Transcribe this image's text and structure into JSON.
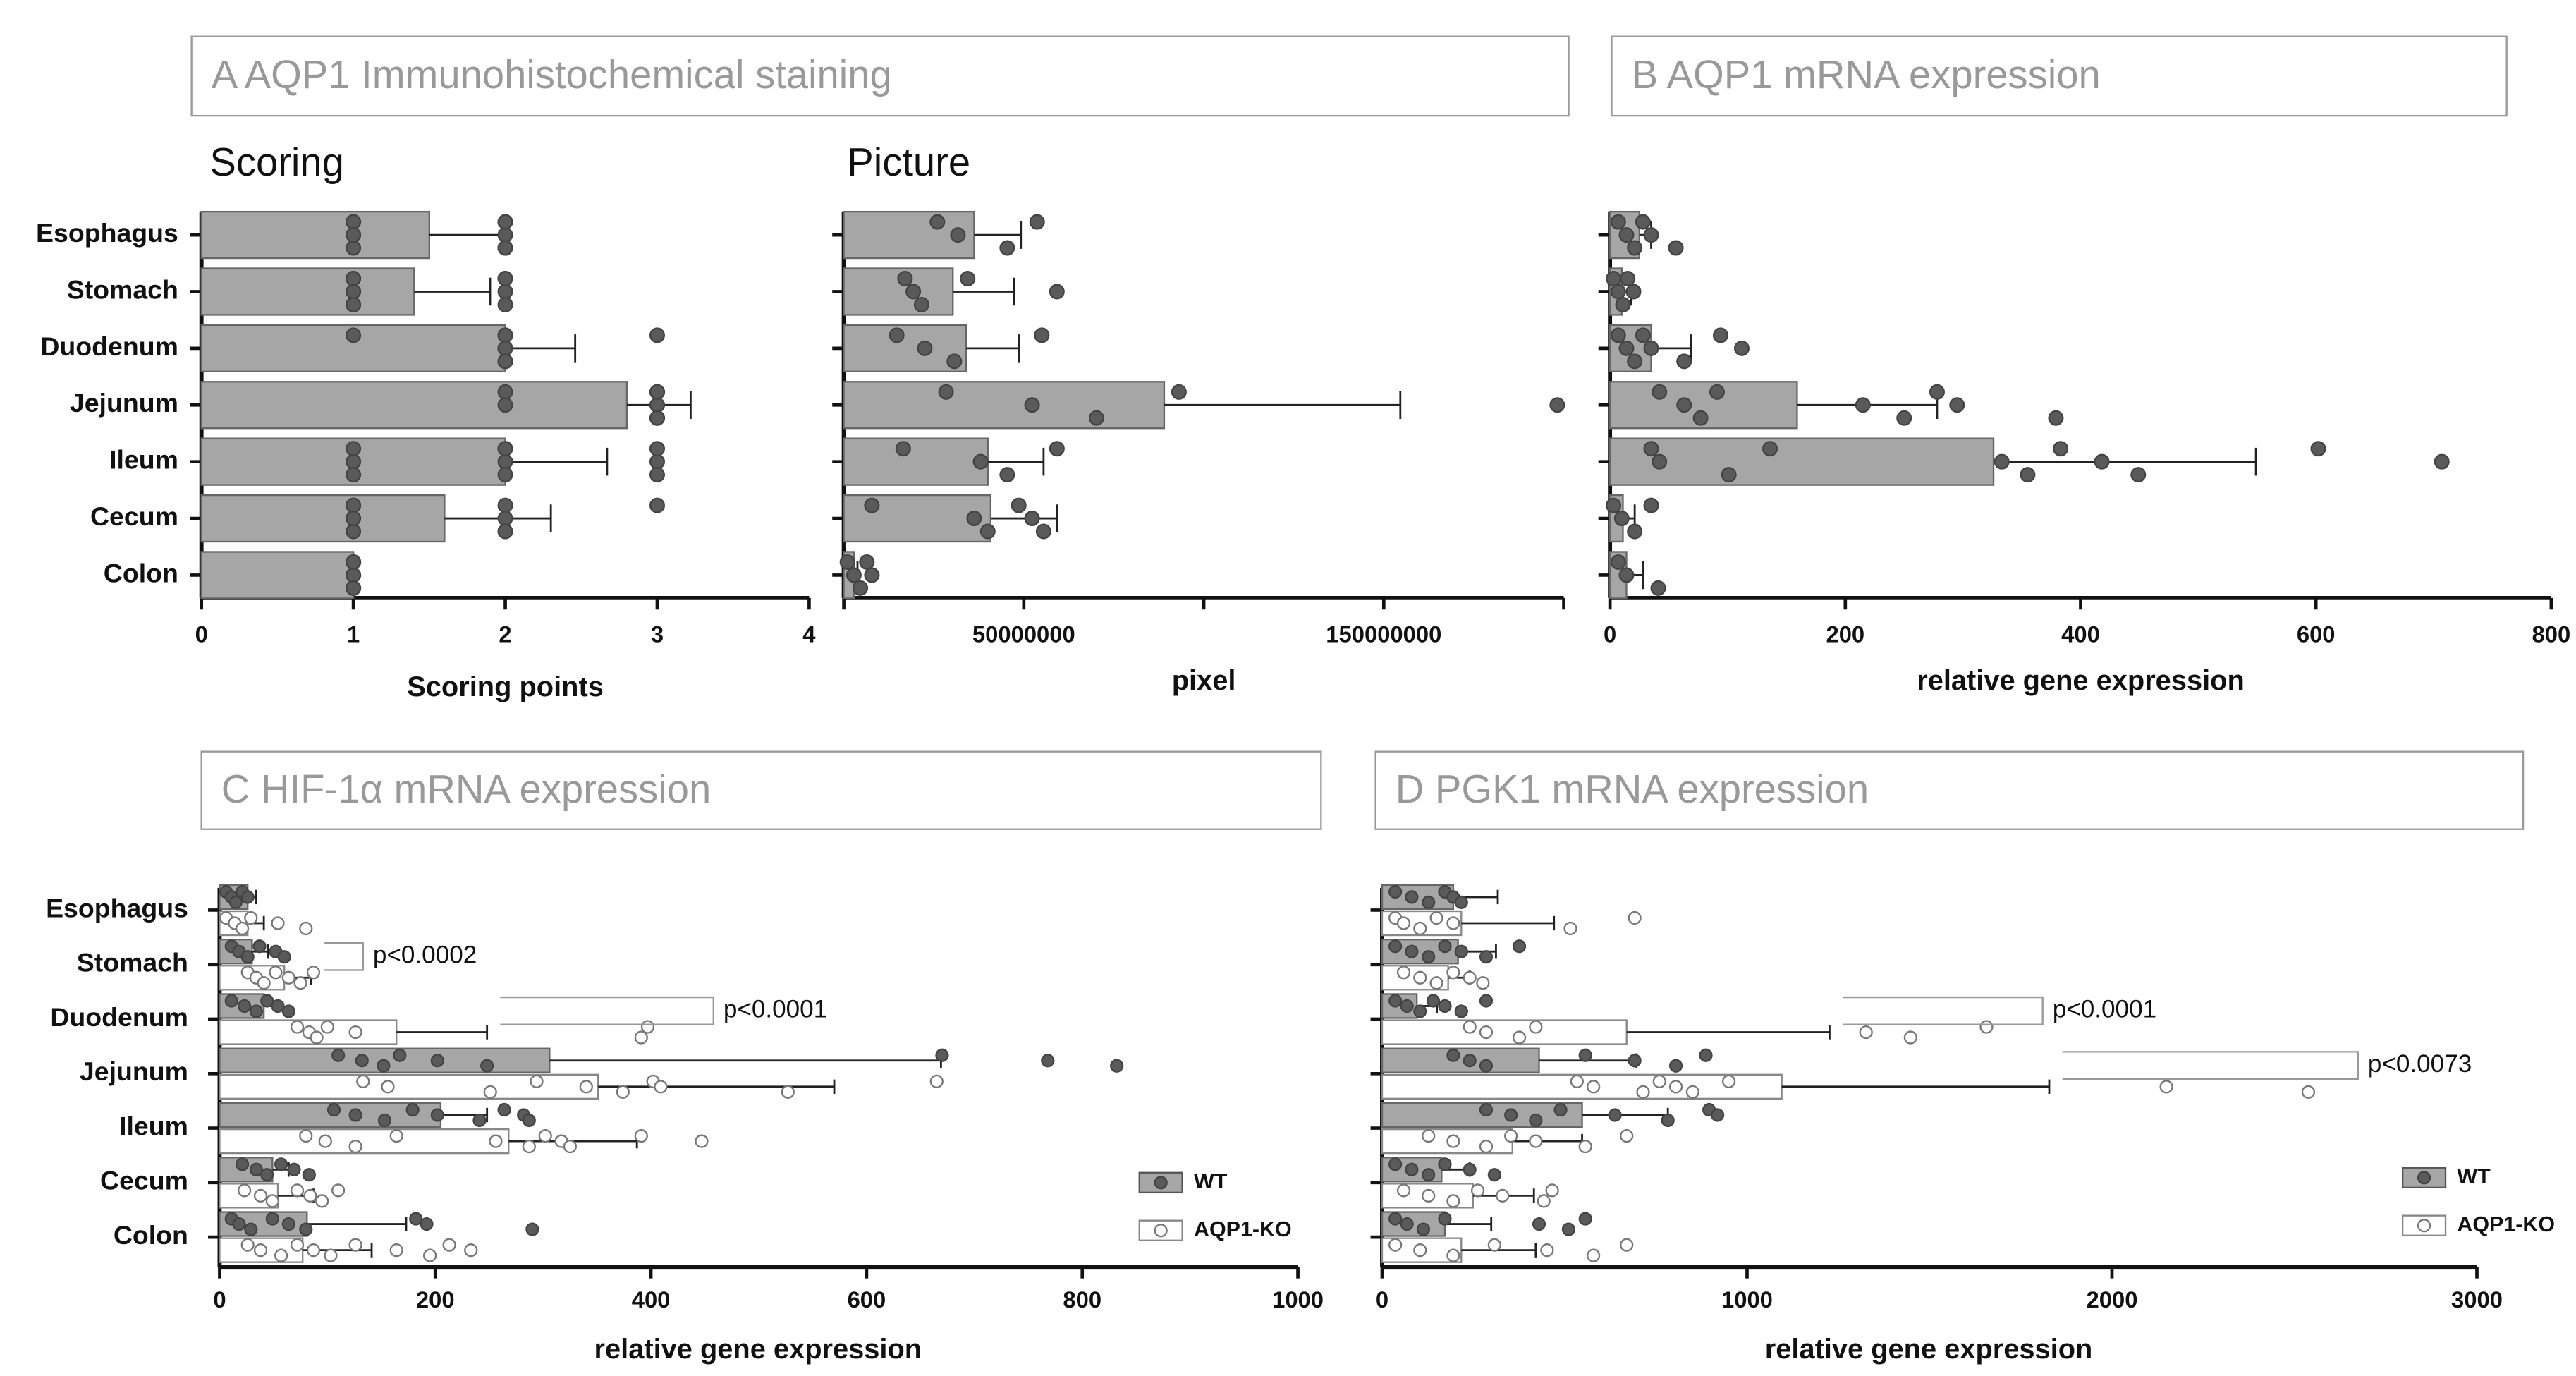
{
  "chart_data": [
    {
      "type": "bar",
      "panel_title": "A AQP1 Immunohistochemical staining",
      "title": "Scoring",
      "categories": [
        "Esophagus",
        "Stomach",
        "Duodenum",
        "Jejunum",
        "Ileum",
        "Cecum",
        "Colon"
      ],
      "xlim": [
        0,
        4
      ],
      "xticks": [
        0,
        1,
        2,
        3,
        4
      ],
      "xlabel": "Scoring points",
      "series": [
        {
          "color": "#a6a6a6",
          "point_color": "#5a5a5a",
          "values": [
            1.5,
            1.4,
            2.0,
            2.8,
            2.0,
            1.6,
            1.0
          ],
          "errors": [
            0.5,
            0.5,
            0.46,
            0.42,
            0.67,
            0.7,
            0
          ],
          "points": [
            [
              1,
              1,
              1,
              1,
              1,
              2,
              2,
              2,
              2,
              2
            ],
            [
              1,
              1,
              1,
              1,
              1,
              1,
              2,
              2,
              2,
              2
            ],
            [
              1,
              2,
              2,
              2,
              2,
              2,
              2,
              2,
              2,
              3
            ],
            [
              2,
              2,
              3,
              3,
              3,
              3,
              3,
              3,
              3,
              3
            ],
            [
              1,
              1,
              1,
              2,
              2,
              2,
              2,
              3,
              3,
              3
            ],
            [
              1,
              1,
              1,
              1,
              1,
              2,
              2,
              2,
              2,
              3
            ],
            [
              1,
              1,
              1,
              1,
              1,
              1,
              1,
              1,
              1,
              1
            ]
          ]
        }
      ]
    },
    {
      "type": "bar",
      "title": "Picture",
      "xlim": [
        0,
        200000000
      ],
      "xticks": [
        50000000,
        150000000
      ],
      "xminor": [
        0,
        100000000,
        200000000
      ],
      "xlabel": "pixel",
      "series": [
        {
          "color": "#a6a6a6",
          "point_color": "#5a5a5a",
          "values": [
            36200000,
            30300000,
            34000000,
            89000000,
            40000000,
            40800000,
            2800000
          ],
          "errors": [
            13000000,
            17000000,
            14600000,
            65600000,
            15500000,
            18400000,
            1000000
          ],
          "points": [
            [
              26000000,
              31700000,
              45400000,
              53700000
            ],
            [
              17000000,
              19300000,
              21600000,
              34400000,
              59200000
            ],
            [
              14700000,
              22500000,
              30700000,
              55000000
            ],
            [
              28400000,
              52300000,
              70200000,
              93100000,
              198200000
            ],
            [
              16500000,
              38000000,
              45400000,
              59200000
            ],
            [
              7800000,
              36200000,
              40000000,
              48600000,
              52300000,
              55500000
            ],
            [
              1000000,
              2800000,
              4600000,
              6400000,
              7800000
            ]
          ]
        }
      ]
    },
    {
      "type": "bar",
      "panel_title": "B AQP1 mRNA expression",
      "xlim": [
        0,
        800
      ],
      "xticks": [
        0,
        200,
        400,
        600,
        800
      ],
      "xlabel": "relative gene expression",
      "series": [
        {
          "color": "#a6a6a6",
          "point_color": "#5a5a5a",
          "values": [
            25,
            10,
            35,
            159,
            326,
            11,
            14
          ],
          "errors": [
            10,
            8,
            34,
            119,
            223,
            10,
            14
          ],
          "points": [
            [
              7,
              14,
              21,
              28,
              35,
              56
            ],
            [
              3,
              7,
              11,
              15,
              20
            ],
            [
              7,
              14,
              21,
              28,
              35,
              63,
              94,
              112
            ],
            [
              42,
              63,
              77,
              91,
              215,
              250,
              278,
              295,
              379
            ],
            [
              35,
              42,
              101,
              136,
              333,
              355,
              383,
              418,
              449,
              602,
              707
            ],
            [
              3,
              10,
              21,
              35
            ],
            [
              7,
              14,
              41
            ]
          ]
        }
      ]
    },
    {
      "type": "bar",
      "panel_title": "C HIF-1α mRNA expression",
      "categories": [
        "Esophagus",
        "Stomach",
        "Duodenum",
        "Jejunum",
        "Ileum",
        "Cecum",
        "Colon"
      ],
      "xlim": [
        0,
        1000
      ],
      "xticks": [
        0,
        200,
        400,
        600,
        800,
        1000
      ],
      "xlabel": "relative gene expression",
      "legend": "lower right",
      "annotations": [
        {
          "text": "p<0.0002",
          "row": 1,
          "x": 133
        },
        {
          "text": "p<0.0001",
          "row": 2,
          "x": 458
        }
      ],
      "series": [
        {
          "name": "WT",
          "color": "#a6a6a6",
          "point_color": "#5a5a5a",
          "values": [
            26,
            30,
            41,
            306,
            205,
            49,
            81
          ],
          "errors": [
            8,
            15,
            12,
            363,
            43,
            15,
            92
          ],
          "points": [
            [
              6,
              11,
              15,
              21,
              26
            ],
            [
              11,
              18,
              26,
              37,
              52,
              60
            ],
            [
              11,
              23,
              34,
              44,
              54,
              64
            ],
            [
              110,
              132,
              152,
              167,
              202,
              248,
              670,
              768,
              832
            ],
            [
              106,
              126,
              153,
              179,
              202,
              241,
              264,
              282,
              287
            ],
            [
              21,
              34,
              44,
              57,
              69,
              83
            ],
            [
              11,
              18,
              29,
              49,
              64,
              80,
              182,
              192,
              290
            ]
          ]
        },
        {
          "name": "AQP1-KO",
          "color": "#ffffff",
          "point_color": "#ffffff",
          "values": [
            26,
            60,
            164,
            351,
            268,
            54,
            77
          ],
          "errors": [
            15,
            25,
            84,
            219,
            119,
            33,
            64
          ],
          "points": [
            [
              6,
              14,
              21,
              29,
              54,
              80
            ],
            [
              26,
              34,
              41,
              52,
              64,
              75,
              87
            ],
            [
              72,
              83,
              90,
              100,
              126,
              391,
              397
            ],
            [
              133,
              156,
              251,
              294,
              340,
              374,
              402,
              409,
              527,
              665
            ],
            [
              80,
              98,
              126,
              164,
              256,
              287,
              302,
              317,
              325,
              391,
              447
            ],
            [
              23,
              38,
              49,
              72,
              84,
              95,
              110
            ],
            [
              26,
              38,
              57,
              72,
              87,
              103,
              126,
              164,
              195,
              213,
              233
            ]
          ]
        }
      ]
    },
    {
      "type": "bar",
      "panel_title": "D PGK1 mRNA expression",
      "xlim": [
        0,
        3000
      ],
      "xticks": [
        0,
        1000,
        2000,
        3000
      ],
      "xlabel": "relative gene expression",
      "legend": "lower right",
      "annotations": [
        {
          "text": "p<0.0001",
          "row": 2,
          "x": 1810
        },
        {
          "text": "p<0.0073",
          "row": 3,
          "x": 2674
        }
      ],
      "series": [
        {
          "name": "WT",
          "color": "#a6a6a6",
          "point_color": "#5a5a5a",
          "values": [
            195,
            208,
            95,
            430,
            548,
            163,
            172
          ],
          "errors": [
            122,
            104,
            55,
            267,
            235,
            77,
            127
          ],
          "points": [
            [
              36,
              81,
              127,
              172,
              195,
              217
            ],
            [
              36,
              81,
              127,
              172,
              217,
              285,
              376
            ],
            [
              36,
              68,
              104,
              140,
              172,
              217,
              285
            ],
            [
              195,
              240,
              285,
              557,
              692,
              805,
              887
            ],
            [
              285,
              353,
              421,
              489,
              638,
              783,
              896,
              919
            ],
            [
              36,
              81,
              127,
              172,
              240,
              308
            ],
            [
              36,
              68,
              113,
              172,
              430,
              511,
              557
            ]
          ]
        },
        {
          "name": "AQP1-KO",
          "color": "#ffffff",
          "point_color": "#ffffff",
          "values": [
            217,
            181,
            670,
            1095,
            357,
            249,
            217
          ],
          "errors": [
            254,
            59,
            556,
            733,
            191,
            167,
            204
          ],
          "points": [
            [
              36,
              59,
              104,
              149,
              195,
              516,
              692
            ],
            [
              59,
              104,
              149,
              195,
              240,
              276
            ],
            [
              240,
              285,
              376,
              421,
              1326,
              1448,
              1656
            ],
            [
              534,
              579,
              715,
              760,
              805,
              851,
              950,
              2149,
              2538
            ],
            [
              127,
              195,
              285,
              353,
              421,
              557,
              670
            ],
            [
              59,
              127,
              195,
              262,
              330,
              443,
              466
            ],
            [
              36,
              104,
              195,
              308,
              452,
              579,
              670
            ]
          ]
        }
      ]
    }
  ]
}
